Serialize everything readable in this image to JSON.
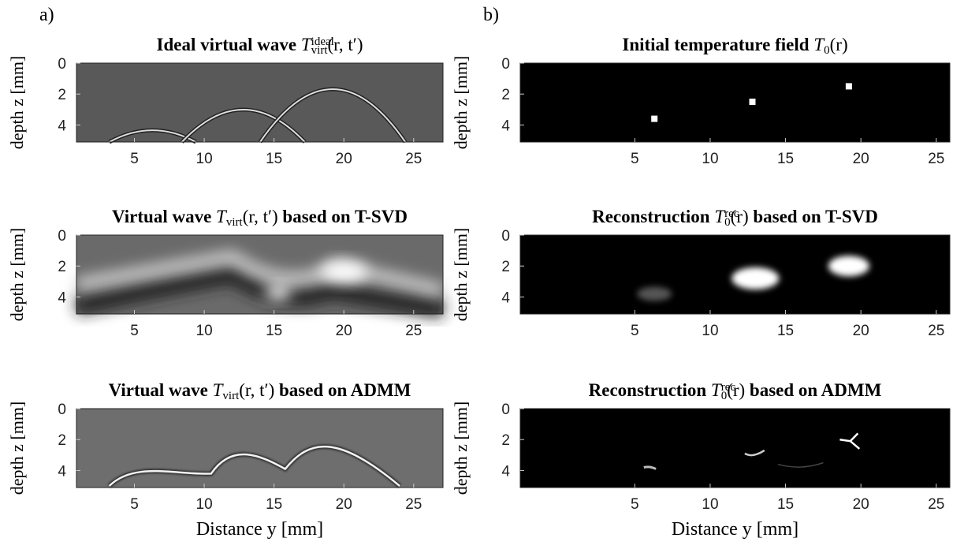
{
  "chart_data": [
    {
      "type": "image",
      "panel_label": "a)",
      "title": [
        {
          "text": "Ideal virtual wave ",
          "style": "bold"
        },
        {
          "text": "T",
          "style": "italic"
        },
        {
          "text": "ideal",
          "style": "sup"
        },
        {
          "text": "virt",
          "style": "sub"
        },
        {
          "text": "(r, t′)",
          "style": "normal"
        }
      ],
      "ylabel": "depth z [mm]",
      "xlim": [
        0.85,
        27.1
      ],
      "ylim": [
        0,
        5.1
      ],
      "xticks": [
        5,
        10,
        15,
        20,
        25
      ],
      "yticks": [
        0,
        2,
        4
      ]
    },
    {
      "type": "image",
      "title": [
        {
          "text": "Virtual wave ",
          "style": "bold"
        },
        {
          "text": "T",
          "style": "italic"
        },
        {
          "text": "virt",
          "style": "sub"
        },
        {
          "text": "(r, t′)",
          "style": "normal"
        },
        {
          "text": " based on T-SVD",
          "style": "bold"
        }
      ],
      "ylabel": "depth z [mm]",
      "xlim": [
        0.85,
        27.1
      ],
      "ylim": [
        0,
        5.1
      ],
      "xticks": [
        5,
        10,
        15,
        20,
        25
      ],
      "yticks": [
        0,
        2,
        4
      ]
    },
    {
      "type": "image",
      "title": [
        {
          "text": "Virtual wave ",
          "style": "bold"
        },
        {
          "text": "T",
          "style": "italic"
        },
        {
          "text": "virt",
          "style": "sub"
        },
        {
          "text": "(r, t′)",
          "style": "normal"
        },
        {
          "text": " based on ADMM",
          "style": "bold"
        }
      ],
      "ylabel": "depth z [mm]",
      "xlabel": "Distance y [mm]",
      "xlim": [
        0.85,
        27.1
      ],
      "ylim": [
        0,
        5.1
      ],
      "xticks": [
        5,
        10,
        15,
        20,
        25
      ],
      "yticks": [
        0,
        2,
        4
      ]
    },
    {
      "type": "image",
      "panel_label": "b)",
      "title": [
        {
          "text": "Initial temperature field ",
          "style": "bold"
        },
        {
          "text": "T",
          "style": "italic"
        },
        {
          "text": "0",
          "style": "sub"
        },
        {
          "text": "(r)",
          "style": "normal"
        }
      ],
      "ylabel": "depth z [mm]",
      "xlim": [
        -2.6,
        25.9
      ],
      "ylim": [
        0,
        5.1
      ],
      "xticks": [
        5,
        10,
        15,
        20,
        25
      ],
      "yticks": [
        0,
        2,
        4
      ]
    },
    {
      "type": "image",
      "title": [
        {
          "text": "Reconstruction ",
          "style": "bold"
        },
        {
          "text": "T",
          "style": "italic"
        },
        {
          "text": "rec",
          "style": "sup"
        },
        {
          "text": "0",
          "style": "sub"
        },
        {
          "text": "(r)",
          "style": "normal"
        },
        {
          "text": " based on T-SVD",
          "style": "bold"
        }
      ],
      "ylabel": "depth z [mm]",
      "xlim": [
        -2.6,
        25.9
      ],
      "ylim": [
        0,
        5.1
      ],
      "xticks": [
        5,
        10,
        15,
        20,
        25
      ],
      "yticks": [
        0,
        2,
        4
      ]
    },
    {
      "type": "image",
      "title": [
        {
          "text": "Reconstruction ",
          "style": "bold"
        },
        {
          "text": "T",
          "style": "italic"
        },
        {
          "text": "rec",
          "style": "sup"
        },
        {
          "text": "0",
          "style": "sub"
        },
        {
          "text": "(r)",
          "style": "normal"
        },
        {
          "text": " based on ADMM",
          "style": "bold"
        }
      ],
      "ylabel": "depth z [mm]",
      "xlabel": "Distance y [mm]",
      "xlim": [
        -2.6,
        25.9
      ],
      "ylim": [
        0,
        5.1
      ],
      "xticks": [
        5,
        10,
        15,
        20,
        25
      ],
      "yticks": [
        0,
        2,
        4
      ]
    }
  ]
}
